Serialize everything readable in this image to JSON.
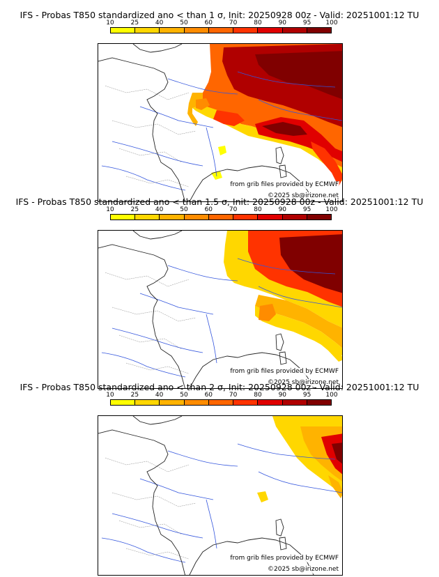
{
  "legend": {
    "labels": [
      "10",
      "25",
      "40",
      "50",
      "60",
      "70",
      "80",
      "90",
      "95",
      "100"
    ],
    "colors": [
      "#ffff00",
      "#ffd700",
      "#ffb300",
      "#ff8c00",
      "#ff6600",
      "#ff3300",
      "#e00000",
      "#b00000",
      "#800000"
    ]
  },
  "credits": {
    "grib": "from grib files provided by ECMWF",
    "copyright": "©2025 sb@irizone.net"
  },
  "panels": [
    {
      "title": "IFS - Probas T850  standardized ano < than 1 σ, Init: 20250928 00z - Valid: 20251001:12 TU"
    },
    {
      "title": "IFS - Probas T850  standardized ano < than 1.5 σ, Init: 20250928 00z - Valid: 20251001:12 TU"
    },
    {
      "title": "IFS - Probas T850  standardized ano < than 2 σ, Init: 20250928 00z - Valid: 20251001:12 TU"
    }
  ]
}
